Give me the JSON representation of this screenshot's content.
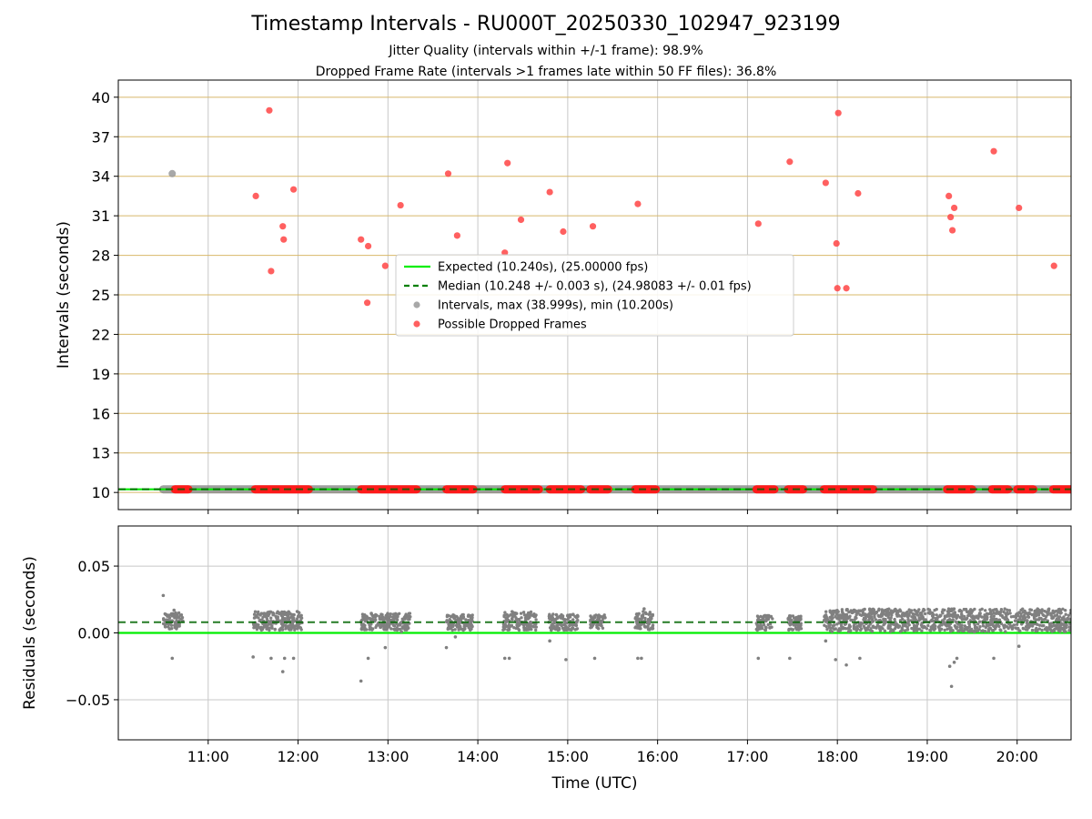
{
  "chart_data": [
    {
      "type": "scatter",
      "title": "Timestamp Intervals - RU000T_20250330_102947_923199",
      "subtitle_lines": [
        "Jitter Quality (intervals within +/-1 frame): 98.9%",
        "Dropped Frame Rate (intervals >1 frames late within 50 FF files): 36.8%"
      ],
      "xlabel": "",
      "ylabel": "Intervals (seconds)",
      "x_unit": "hours (UTC)",
      "xlim": [
        10.0,
        20.6
      ],
      "ylim": [
        8.7,
        41.3
      ],
      "yticks": [
        10,
        13,
        16,
        19,
        22,
        25,
        28,
        31,
        34,
        37,
        40
      ],
      "ytick_labels": [
        "10",
        "13",
        "16",
        "19",
        "22",
        "25",
        "28",
        "31",
        "34",
        "37",
        "40"
      ],
      "grid": {
        "x": true,
        "y": true,
        "y_color": "#d8b86a"
      },
      "legend_position": "center",
      "legend": [
        {
          "label": "Expected (10.240s), (25.00000 fps)",
          "style": "solid-line",
          "color": "#00ee00"
        },
        {
          "label": "Median (10.248 +/- 0.003 s), (24.98083 +/- 0.01 fps)",
          "style": "dashed-line",
          "color": "#008000"
        },
        {
          "label": "Intervals, max (38.999s), min (10.200s)",
          "style": "marker",
          "color": "#999999"
        },
        {
          "label": "Possible Dropped Frames",
          "style": "marker",
          "color": "#ff4444"
        }
      ],
      "expected_value": 10.24,
      "median_value": 10.248,
      "series": [
        {
          "name": "Intervals, max (38.999s), min (10.200s)",
          "color": "#999999",
          "points": [
            [
              10.6,
              34.2
            ]
          ],
          "dense_band": {
            "y": 10.24,
            "x_ranges": [
              [
                10.5,
                20.6
              ]
            ]
          }
        },
        {
          "name": "Possible Dropped Frames",
          "color": "#ff4444",
          "points": [
            [
              11.53,
              32.5
            ],
            [
              11.68,
              39.0
            ],
            [
              11.7,
              26.8
            ],
            [
              11.83,
              30.2
            ],
            [
              11.84,
              29.2
            ],
            [
              11.95,
              33.0
            ],
            [
              12.7,
              29.2
            ],
            [
              12.77,
              24.4
            ],
            [
              12.78,
              28.7
            ],
            [
              12.97,
              27.2
            ],
            [
              13.14,
              31.8
            ],
            [
              13.67,
              34.2
            ],
            [
              13.77,
              29.5
            ],
            [
              14.3,
              28.2
            ],
            [
              14.33,
              35.0
            ],
            [
              14.48,
              30.7
            ],
            [
              14.8,
              32.8
            ],
            [
              14.95,
              29.8
            ],
            [
              15.28,
              30.2
            ],
            [
              15.78,
              31.9
            ],
            [
              17.12,
              30.4
            ],
            [
              17.47,
              35.1
            ],
            [
              17.87,
              33.5
            ],
            [
              17.99,
              28.9
            ],
            [
              18.0,
              25.5
            ],
            [
              18.01,
              38.8
            ],
            [
              18.1,
              25.5
            ],
            [
              18.23,
              32.7
            ],
            [
              19.24,
              32.5
            ],
            [
              19.26,
              30.9
            ],
            [
              19.28,
              29.9
            ],
            [
              19.3,
              31.6
            ],
            [
              19.74,
              35.9
            ],
            [
              20.02,
              31.6
            ],
            [
              20.41,
              27.2
            ]
          ],
          "dense_band": {
            "y": 10.24,
            "x_ranges": [
              [
                10.63,
                10.78
              ],
              [
                11.52,
                12.12
              ],
              [
                12.7,
                13.32
              ],
              [
                13.65,
                13.95
              ],
              [
                14.3,
                14.68
              ],
              [
                14.8,
                15.15
              ],
              [
                15.25,
                15.45
              ],
              [
                15.75,
                15.98
              ],
              [
                17.1,
                17.3
              ],
              [
                17.45,
                17.62
              ],
              [
                17.85,
                18.4
              ],
              [
                19.22,
                19.5
              ],
              [
                19.72,
                19.9
              ],
              [
                20.0,
                20.18
              ],
              [
                20.4,
                20.6
              ]
            ]
          }
        }
      ]
    },
    {
      "type": "scatter",
      "xlabel": "Time (UTC)",
      "ylabel": "Residuals (seconds)",
      "x_unit": "hours (UTC)",
      "xlim": [
        10.0,
        20.6
      ],
      "xticks": [
        11,
        12,
        13,
        14,
        15,
        16,
        17,
        18,
        19,
        20
      ],
      "xtick_labels": [
        "11:00",
        "12:00",
        "13:00",
        "14:00",
        "15:00",
        "16:00",
        "17:00",
        "18:00",
        "19:00",
        "20:00"
      ],
      "ylim": [
        -0.08,
        0.08
      ],
      "yticks": [
        -0.05,
        0.0,
        0.05
      ],
      "ytick_labels": [
        "−0.05",
        "0.00",
        "0.05"
      ],
      "grid": {
        "x": true,
        "y": true
      },
      "expected_value": 0.0,
      "median_value": 0.008,
      "series": [
        {
          "name": "Residuals",
          "color": "#808080",
          "points": [
            [
              10.5,
              0.028
            ],
            [
              10.6,
              -0.019
            ],
            [
              10.62,
              0.017
            ],
            [
              11.5,
              -0.018
            ],
            [
              11.7,
              -0.019
            ],
            [
              11.83,
              -0.029
            ],
            [
              11.85,
              -0.019
            ],
            [
              11.95,
              -0.019
            ],
            [
              12.7,
              -0.036
            ],
            [
              12.78,
              -0.019
            ],
            [
              12.97,
              -0.011
            ],
            [
              13.15,
              0.001
            ],
            [
              13.65,
              -0.011
            ],
            [
              13.75,
              -0.003
            ],
            [
              14.3,
              -0.019
            ],
            [
              14.35,
              -0.019
            ],
            [
              14.8,
              -0.006
            ],
            [
              14.98,
              -0.02
            ],
            [
              15.3,
              -0.019
            ],
            [
              15.78,
              -0.019
            ],
            [
              15.82,
              -0.019
            ],
            [
              15.85,
              0.018
            ],
            [
              17.12,
              -0.019
            ],
            [
              17.47,
              -0.019
            ],
            [
              17.87,
              -0.006
            ],
            [
              17.98,
              -0.02
            ],
            [
              18.1,
              -0.024
            ],
            [
              18.25,
              -0.019
            ],
            [
              19.25,
              -0.025
            ],
            [
              19.27,
              -0.04
            ],
            [
              19.3,
              -0.022
            ],
            [
              19.33,
              -0.019
            ],
            [
              19.74,
              -0.019
            ],
            [
              20.02,
              -0.01
            ]
          ],
          "clusters": [
            {
              "x_range": [
                10.5,
                10.72
              ],
              "y_range": [
                0.003,
                0.015
              ]
            },
            {
              "x_range": [
                11.5,
                12.05
              ],
              "y_range": [
                0.002,
                0.016
              ]
            },
            {
              "x_range": [
                12.7,
                13.25
              ],
              "y_range": [
                0.002,
                0.015
              ]
            },
            {
              "x_range": [
                13.65,
                13.95
              ],
              "y_range": [
                0.002,
                0.014
              ]
            },
            {
              "x_range": [
                14.28,
                14.65
              ],
              "y_range": [
                0.002,
                0.016
              ]
            },
            {
              "x_range": [
                14.78,
                15.12
              ],
              "y_range": [
                0.002,
                0.014
              ]
            },
            {
              "x_range": [
                15.25,
                15.42
              ],
              "y_range": [
                0.003,
                0.014
              ]
            },
            {
              "x_range": [
                15.75,
                15.95
              ],
              "y_range": [
                0.002,
                0.016
              ]
            },
            {
              "x_range": [
                17.1,
                17.28
              ],
              "y_range": [
                0.002,
                0.013
              ]
            },
            {
              "x_range": [
                17.45,
                17.6
              ],
              "y_range": [
                0.002,
                0.013
              ]
            },
            {
              "x_range": [
                17.85,
                20.6
              ],
              "y_range": [
                0.001,
                0.018
              ]
            }
          ]
        }
      ]
    }
  ]
}
